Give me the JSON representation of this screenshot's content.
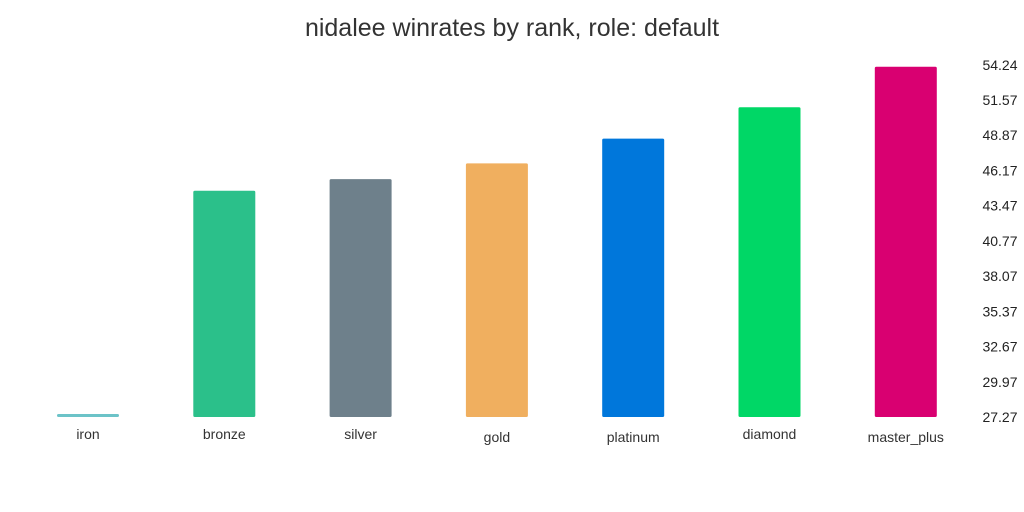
{
  "chart_data": {
    "type": "bar",
    "title": "nidalee winrates by rank, role: default",
    "xlabel": "",
    "ylabel": "",
    "categories": [
      "iron",
      "bronze",
      "silver",
      "gold",
      "platinum",
      "diamond",
      "master_plus"
    ],
    "values": [
      27.5,
      44.6,
      45.5,
      46.7,
      48.6,
      51.0,
      54.1
    ],
    "colors": [
      "#6cc3c8",
      "#2bc08a",
      "#6e808b",
      "#f0af5f",
      "#0077db",
      "#00d766",
      "#d90071"
    ],
    "y_ticks": [
      "54.24",
      "51.57",
      "48.87",
      "46.17",
      "43.47",
      "40.77",
      "38.07",
      "35.37",
      "32.67",
      "29.97",
      "27.27"
    ],
    "ylim": [
      27.27,
      54.24
    ],
    "y_axis_side": "right",
    "grid": false,
    "legend": "none"
  }
}
